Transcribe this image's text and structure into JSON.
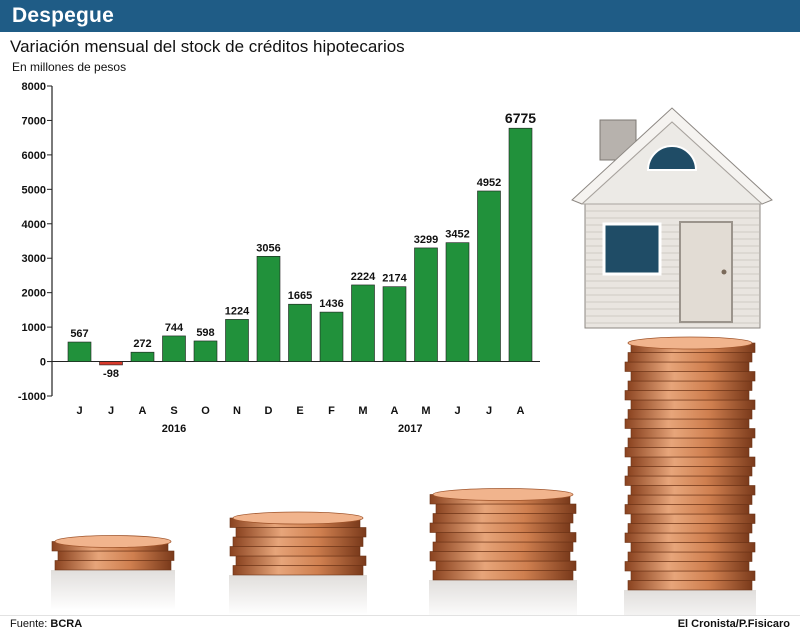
{
  "header": {
    "title": "Despegue"
  },
  "colors": {
    "header_bg": "#1f5c86",
    "positive_bar": "#21913b",
    "negative_bar": "#d93a2b",
    "axis": "#222222"
  },
  "chart_data": {
    "type": "bar",
    "title": "Variación mensual del stock de créditos hipotecarios",
    "subtitle": "En millones de pesos",
    "categories": [
      "J",
      "J",
      "A",
      "S",
      "O",
      "N",
      "D",
      "E",
      "F",
      "M",
      "A",
      "M",
      "J",
      "J",
      "A"
    ],
    "values": [
      567,
      -98,
      272,
      744,
      598,
      1224,
      3056,
      1665,
      1436,
      2224,
      2174,
      3299,
      3452,
      4952,
      6775
    ],
    "year_groups": [
      {
        "label": "2016",
        "from": 0,
        "to": 6
      },
      {
        "label": "2017",
        "from": 7,
        "to": 14
      }
    ],
    "yticks": [
      8000,
      7000,
      6000,
      5000,
      4000,
      3000,
      2000,
      1000,
      0,
      -1000
    ],
    "ylim": [
      -1000,
      8000
    ],
    "highlight_last": true,
    "grid": false,
    "legend": "none"
  },
  "footer": {
    "source_prefix": "Fuente:",
    "source_name": "BCRA",
    "credit": "El Cronista/P.Fisicaro"
  },
  "illustration": {
    "subject": "house-on-coin-stacks",
    "stacks": [
      3,
      6,
      9,
      16
    ]
  }
}
